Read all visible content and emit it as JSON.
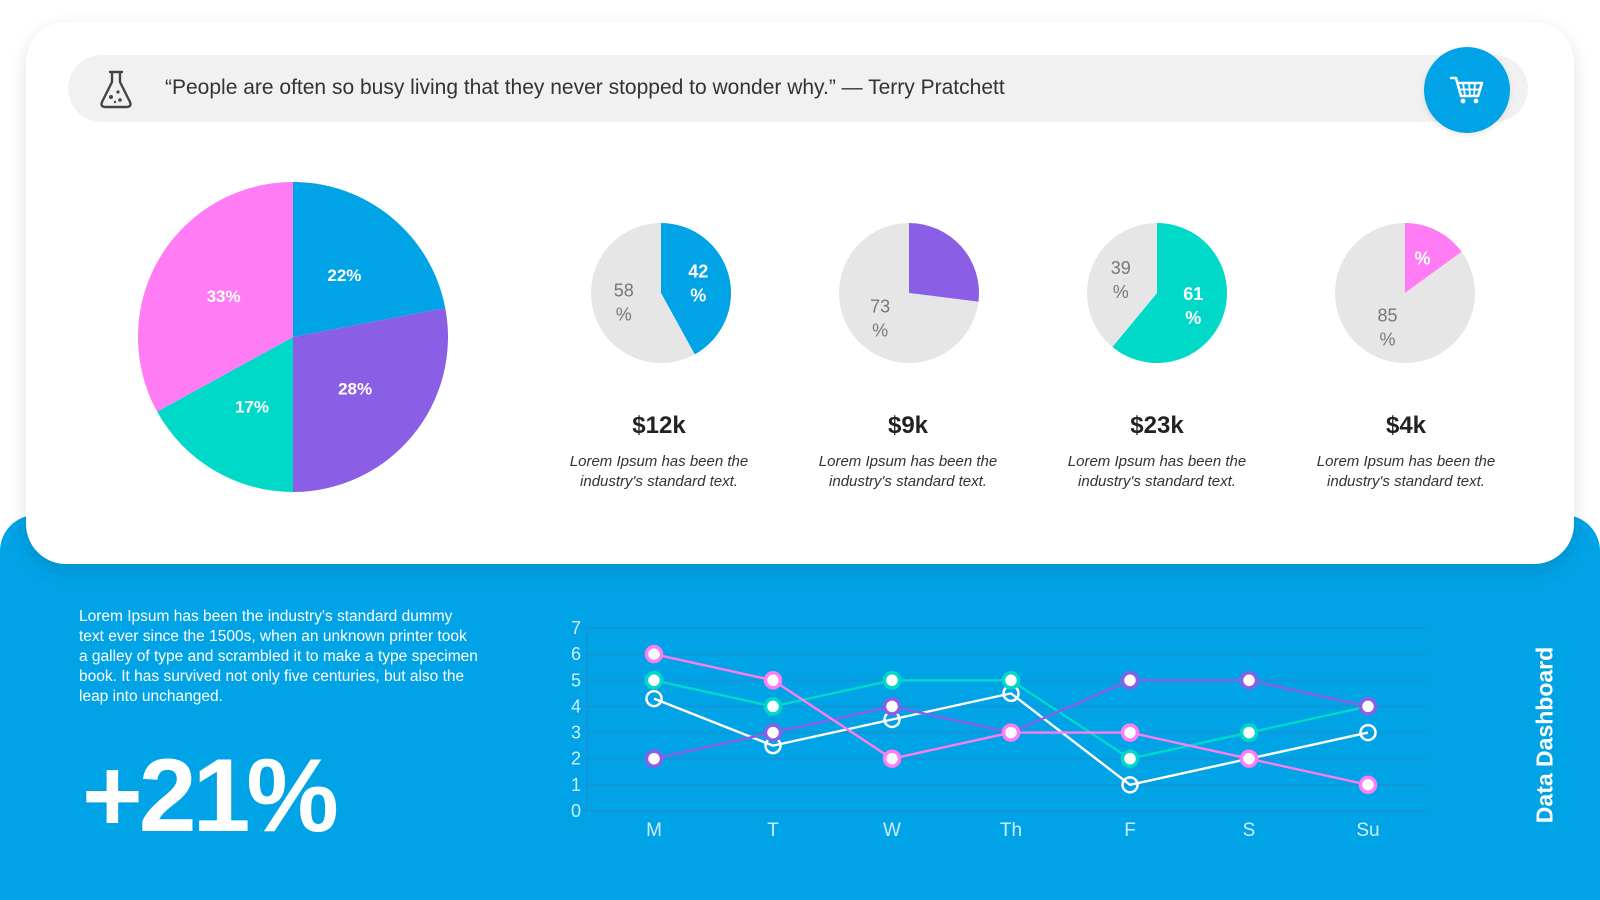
{
  "quote": "“People are often so busy living that they never stopped to wonder why.” — Terry Pratchett",
  "header": {
    "flask_icon": "flask-icon",
    "cart_icon": "shopping-cart-icon"
  },
  "colors": {
    "blue": "#00a3e6",
    "purple": "#8a5fe6",
    "teal": "#00d9c8",
    "pink": "#ff7cf5",
    "grey": "#e6e6e6",
    "white": "#ffffff"
  },
  "kpis": [
    {
      "value": "$12k",
      "desc": "Lorem Ipsum has been the industry's standard text."
    },
    {
      "value": "$9k",
      "desc": "Lorem Ipsum has been the industry's standard text."
    },
    {
      "value": "$23k",
      "desc": "Lorem Ipsum has been the industry's standard text."
    },
    {
      "value": "$4k",
      "desc": "Lorem Ipsum has been the industry's standard text."
    }
  ],
  "summary": {
    "text": "Lorem Ipsum has been the industry's standard dummy text ever since the 1500s, when an unknown printer took a galley of type and scrambled it to make a type specimen book. It has survived not only five centuries, but also the leap into unchanged.",
    "big_value": "+21%",
    "dashboard_title": "Data Dashboard"
  },
  "chart_data": [
    {
      "type": "pie",
      "slices": [
        {
          "label": "22%",
          "value": 22,
          "color": "#00a3e6"
        },
        {
          "label": "28%",
          "value": 28,
          "color": "#8a5fe6"
        },
        {
          "label": "17%",
          "value": 17,
          "color": "#00d9c8"
        },
        {
          "label": "33%",
          "value": 33,
          "color": "#ff7cf5"
        }
      ]
    },
    {
      "type": "pie",
      "slices": [
        {
          "label": "42\n%",
          "value": 42,
          "color": "#00a3e6"
        },
        {
          "label": "58\n%",
          "value": 58,
          "color": "#e6e6e6"
        }
      ]
    },
    {
      "type": "pie",
      "slices": [
        {
          "label": "",
          "value": 27,
          "color": "#8a5fe6"
        },
        {
          "label": "73\n%",
          "value": 73,
          "color": "#e6e6e6"
        }
      ]
    },
    {
      "type": "pie",
      "slices": [
        {
          "label": "61\n%",
          "value": 61,
          "color": "#00d9c8"
        },
        {
          "label": "39\n%",
          "value": 39,
          "color": "#e6e6e6"
        }
      ]
    },
    {
      "type": "pie",
      "slices": [
        {
          "label": "%",
          "value": 15,
          "color": "#ff7cf5"
        },
        {
          "label": "85\n%",
          "value": 85,
          "color": "#e6e6e6"
        }
      ]
    },
    {
      "type": "line",
      "categories": [
        "M",
        "T",
        "W",
        "Th",
        "F",
        "S",
        "Su"
      ],
      "ylim": [
        0,
        7
      ],
      "yticks": [
        "0",
        "1",
        "2",
        "3",
        "4",
        "5",
        "6",
        "7"
      ],
      "grid": true,
      "series": [
        {
          "color": "#ffffff",
          "values": [
            4.3,
            2.5,
            3.5,
            4.5,
            1,
            2,
            3
          ]
        },
        {
          "color": "#00d9c8",
          "values": [
            5,
            4,
            5,
            5,
            2,
            3,
            4
          ]
        },
        {
          "color": "#8a5fe6",
          "values": [
            2,
            3,
            4,
            3,
            5,
            5,
            4
          ]
        },
        {
          "color": "#ff7cf5",
          "values": [
            6,
            5,
            2,
            3,
            3,
            2,
            1
          ]
        }
      ]
    }
  ]
}
